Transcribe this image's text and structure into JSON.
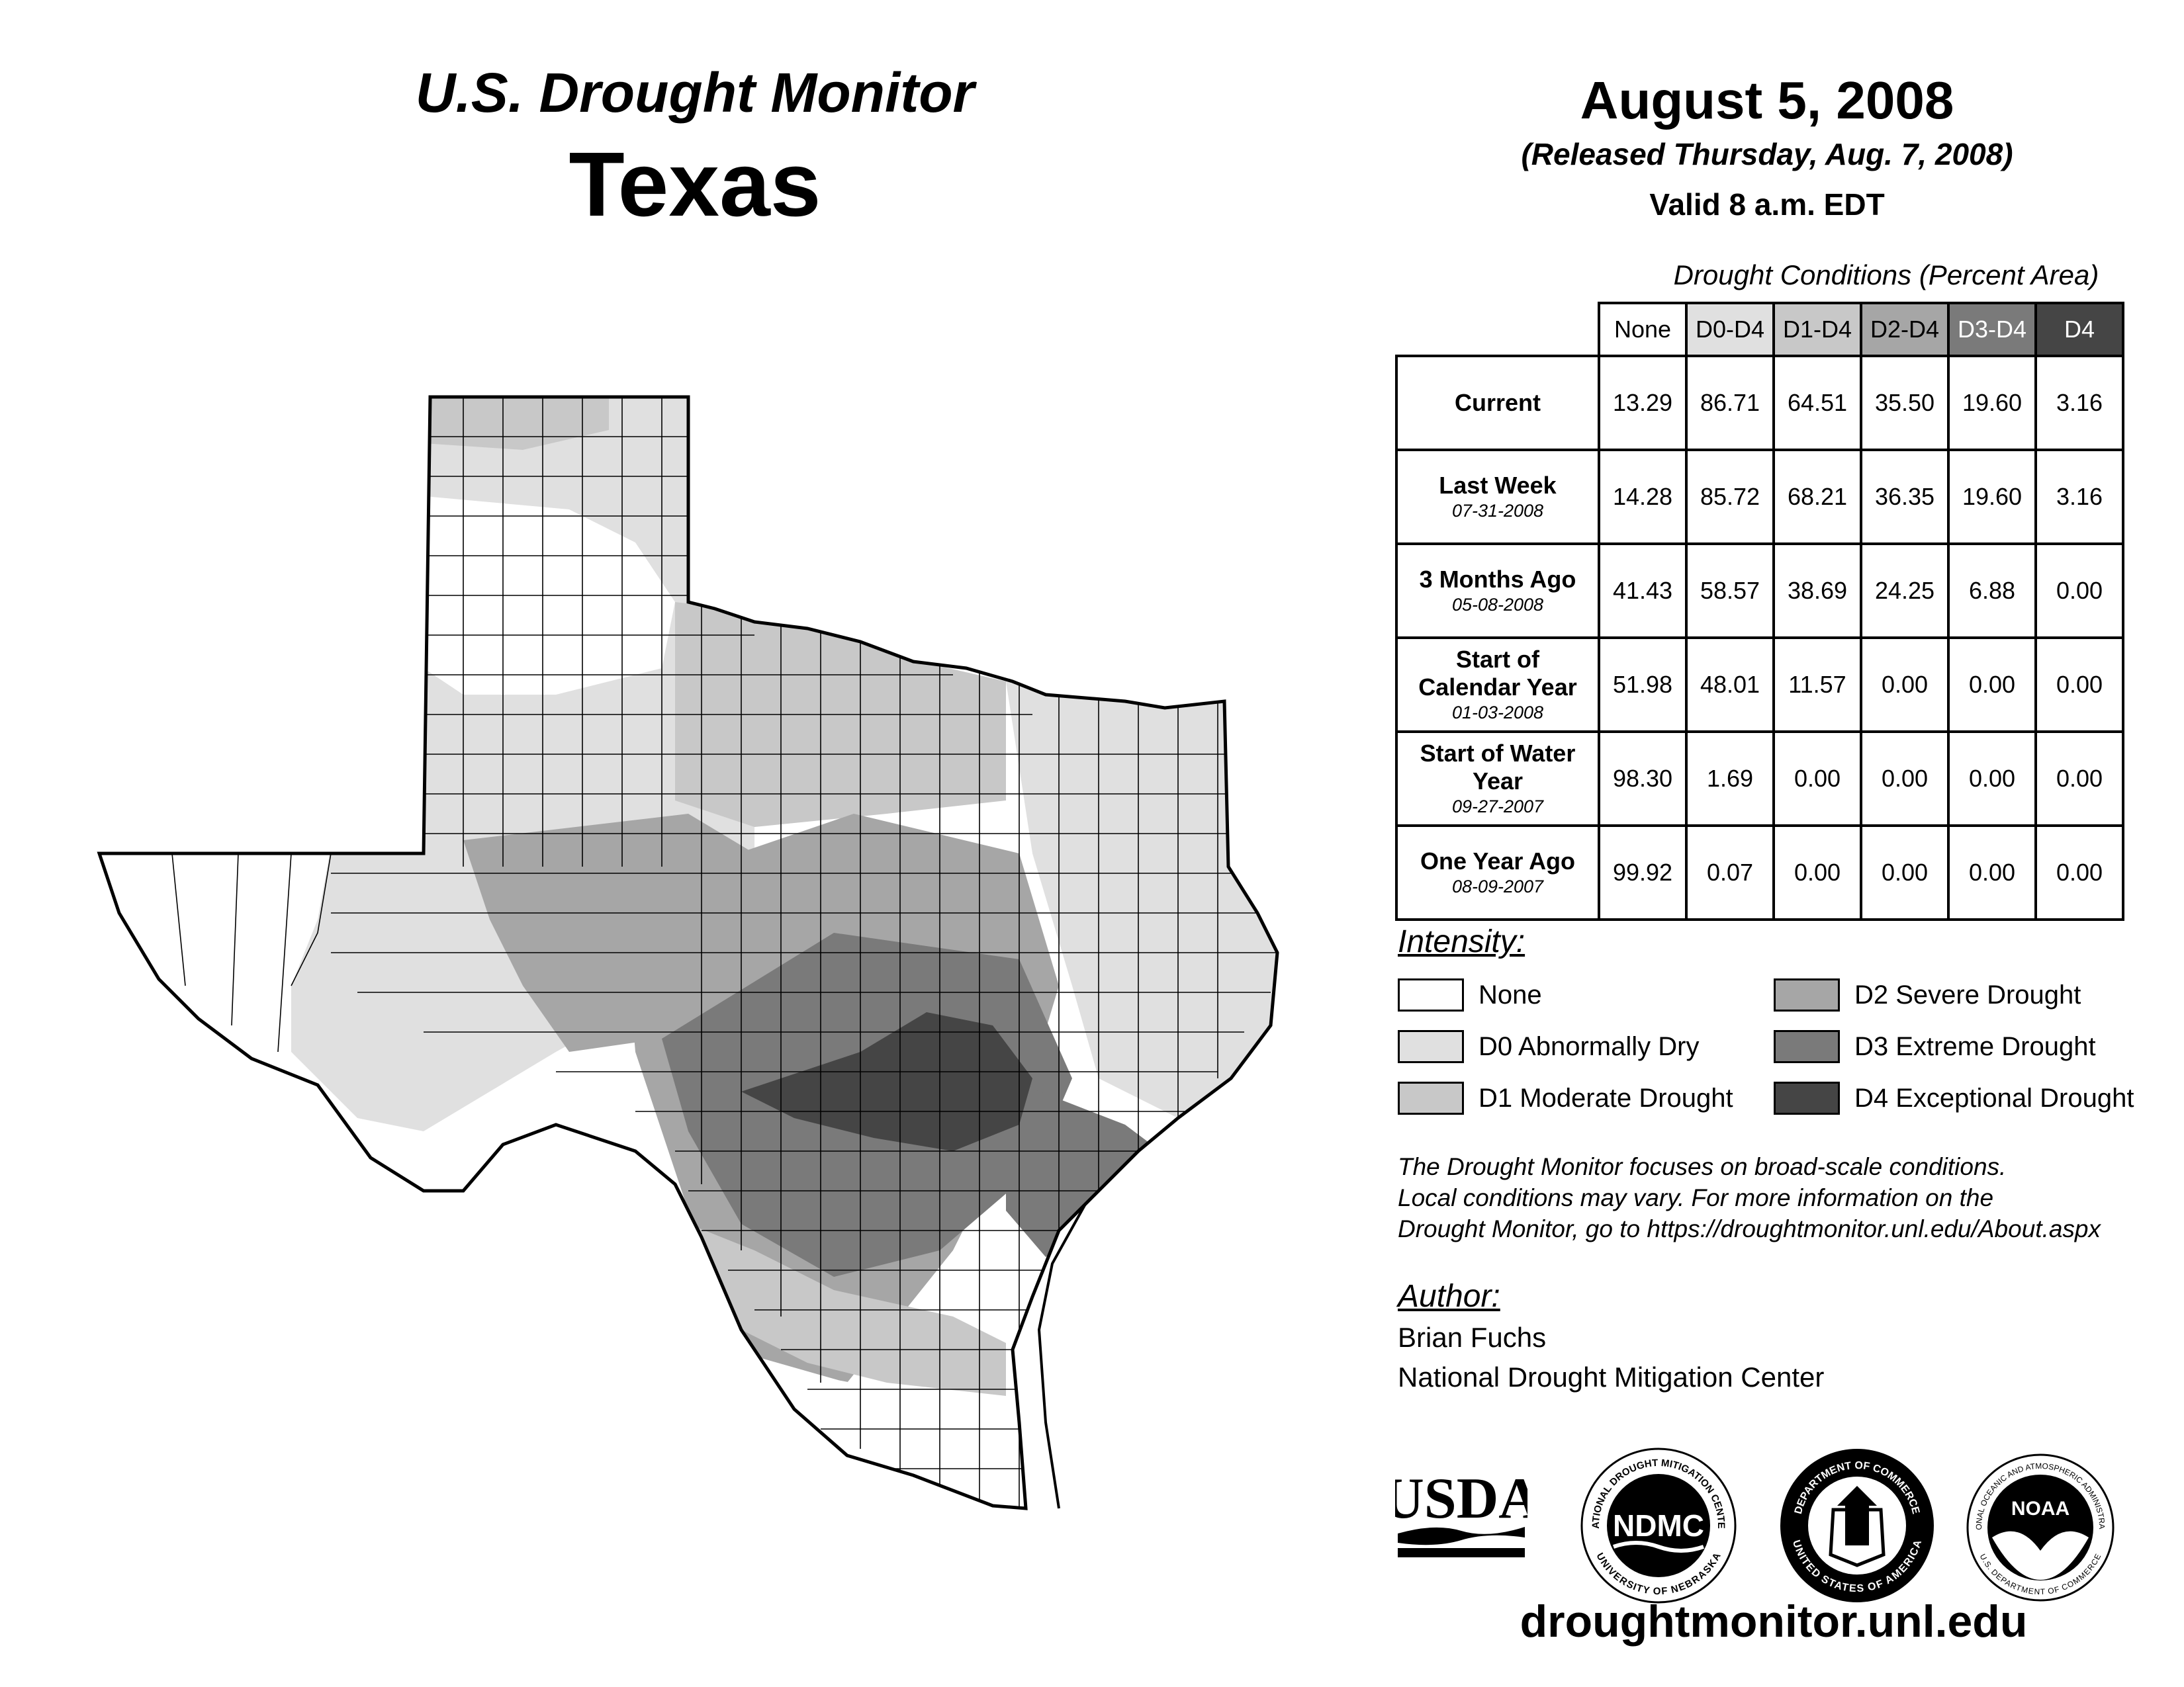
{
  "header": {
    "monitor_title": "U.S. Drought Monitor",
    "state": "Texas"
  },
  "date_block": {
    "date": "August 5, 2008",
    "released": "(Released Thursday, Aug. 7, 2008)",
    "valid": "Valid 8 a.m. EDT"
  },
  "conditions": {
    "title": "Drought Conditions (Percent Area)",
    "columns": [
      "None",
      "D0-D4",
      "D1-D4",
      "D2-D4",
      "D3-D4",
      "D4"
    ],
    "rows": [
      {
        "label": "Current",
        "date": "",
        "values": [
          "13.29",
          "86.71",
          "64.51",
          "35.50",
          "19.60",
          "3.16"
        ]
      },
      {
        "label": "Last Week",
        "date": "07-31-2008",
        "values": [
          "14.28",
          "85.72",
          "68.21",
          "36.35",
          "19.60",
          "3.16"
        ]
      },
      {
        "label": "3 Months Ago",
        "date": "05-08-2008",
        "values": [
          "41.43",
          "58.57",
          "38.69",
          "24.25",
          "6.88",
          "0.00"
        ]
      },
      {
        "label": "Start of Calendar Year",
        "date": "01-03-2008",
        "values": [
          "51.98",
          "48.01",
          "11.57",
          "0.00",
          "0.00",
          "0.00"
        ]
      },
      {
        "label": "Start of Water Year",
        "date": "09-27-2007",
        "values": [
          "98.30",
          "1.69",
          "0.00",
          "0.00",
          "0.00",
          "0.00"
        ]
      },
      {
        "label": "One Year Ago",
        "date": "08-09-2007",
        "values": [
          "99.92",
          "0.07",
          "0.00",
          "0.00",
          "0.00",
          "0.00"
        ]
      }
    ]
  },
  "intensity": {
    "title": "Intensity:",
    "items": [
      {
        "label": "None",
        "color": "#ffffff"
      },
      {
        "label": "D0 Abnormally Dry",
        "color": "#e0e0e0"
      },
      {
        "label": "D1 Moderate Drought",
        "color": "#c8c8c8"
      },
      {
        "label": "D2 Severe Drought",
        "color": "#a6a6a6"
      },
      {
        "label": "D3 Extreme Drought",
        "color": "#7a7a7a"
      },
      {
        "label": "D4 Exceptional Drought",
        "color": "#454545"
      }
    ]
  },
  "note": {
    "line1": "The Drought Monitor focuses on broad-scale conditions.",
    "line2": "Local conditions may vary. For more information on the",
    "line3": "Drought Monitor, go to https://droughtmonitor.unl.edu/About.aspx"
  },
  "author": {
    "title": "Author:",
    "name": "Brian Fuchs",
    "org": "National Drought Mitigation Center"
  },
  "logos": {
    "usda": "USDA",
    "ndmc": "NDMC",
    "ndmc_ring_top": "NATIONAL DROUGHT MITIGATION CENTER",
    "ndmc_ring_bottom": "UNIVERSITY OF NEBRASKA",
    "doc_ring_top": "DEPARTMENT OF COMMERCE",
    "doc_ring_bottom": "UNITED STATES OF AMERICA",
    "noaa": "NOAA",
    "noaa_ring_top": "NATIONAL OCEANIC AND ATMOSPHERIC ADMINISTRATION",
    "noaa_ring_bottom": "U.S. DEPARTMENT OF COMMERCE"
  },
  "footer": {
    "url": "droughtmonitor.unl.edu"
  },
  "map": {
    "region": "Texas",
    "zones": [
      {
        "name": "panhandle-north",
        "category": "D0"
      },
      {
        "name": "panhandle-west-patch",
        "category": "D1"
      },
      {
        "name": "panhandle-clear",
        "category": "None"
      },
      {
        "name": "north-central",
        "category": "D1"
      },
      {
        "name": "west-trans-pecos",
        "category": "None"
      },
      {
        "name": "west-central",
        "category": "D0"
      },
      {
        "name": "permian-d2",
        "category": "D2"
      },
      {
        "name": "central",
        "category": "D2"
      },
      {
        "name": "central-south",
        "category": "D3"
      },
      {
        "name": "coastal-bend",
        "category": "D3"
      },
      {
        "name": "hill-country-core",
        "category": "D4"
      },
      {
        "name": "east-texas",
        "category": "D0"
      },
      {
        "name": "south-border-d1",
        "category": "D1"
      },
      {
        "name": "lower-valley",
        "category": "None"
      }
    ]
  }
}
